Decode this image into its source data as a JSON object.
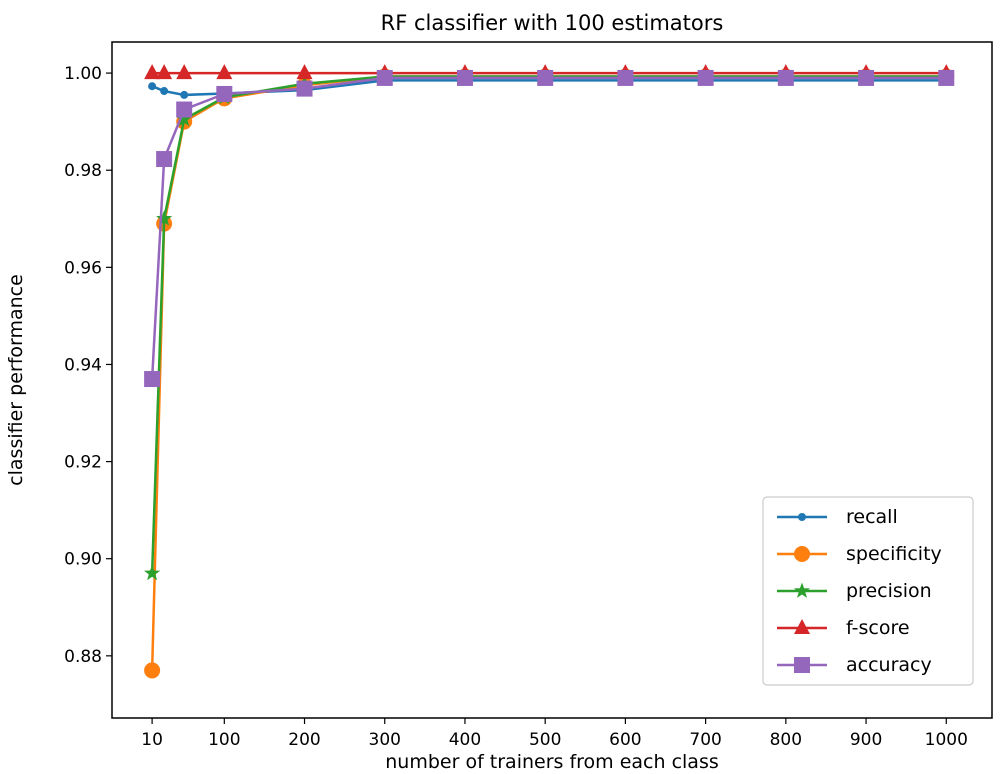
{
  "chart_data": {
    "type": "line",
    "title": "RF classifier with 100 estimators",
    "xlabel": "number of trainers from each class",
    "ylabel": "classifier performance",
    "x": [
      10,
      25,
      50,
      100,
      200,
      300,
      400,
      500,
      600,
      700,
      800,
      900,
      1000
    ],
    "xticks": [
      10,
      100,
      200,
      300,
      400,
      500,
      600,
      700,
      800,
      900,
      1000
    ],
    "yticks": [
      "0.88",
      "0.90",
      "0.92",
      "0.94",
      "0.96",
      "0.98",
      "1.00"
    ],
    "xlim": [
      -40,
      1057
    ],
    "ylim": [
      0.8672,
      1.0064
    ],
    "grid": false,
    "legend_position": "lower-right",
    "series": [
      {
        "name": "recall",
        "color": "#1f77b4",
        "marker": "dot",
        "values": [
          0.9973,
          0.9963,
          0.9955,
          0.9958,
          0.9965,
          0.9985,
          0.9985,
          0.9985,
          0.9985,
          0.9985,
          0.9985,
          0.9985,
          0.9985
        ]
      },
      {
        "name": "specificity",
        "color": "#ff7f0e",
        "marker": "circle",
        "values": [
          0.877,
          0.969,
          0.99,
          0.9948,
          0.9975,
          0.9993,
          0.9993,
          0.9993,
          0.9993,
          0.9993,
          0.9993,
          0.9993,
          0.9993
        ]
      },
      {
        "name": "precision",
        "color": "#2ca02c",
        "marker": "star",
        "values": [
          0.897,
          0.97,
          0.9905,
          0.995,
          0.9978,
          0.9993,
          0.9993,
          0.9993,
          0.9993,
          0.9993,
          0.9993,
          0.9993,
          0.9993
        ]
      },
      {
        "name": "f-score",
        "color": "#d62728",
        "marker": "triangle",
        "values": [
          1.0,
          1.0,
          1.0,
          1.0,
          1.0,
          1.0,
          1.0,
          1.0,
          1.0,
          1.0,
          1.0,
          1.0,
          1.0
        ]
      },
      {
        "name": "accuracy",
        "color": "#9467bd",
        "marker": "square",
        "values": [
          0.937,
          0.9823,
          0.9925,
          0.9957,
          0.9968,
          0.999,
          0.999,
          0.999,
          0.999,
          0.999,
          0.999,
          0.999,
          0.999
        ]
      }
    ]
  }
}
